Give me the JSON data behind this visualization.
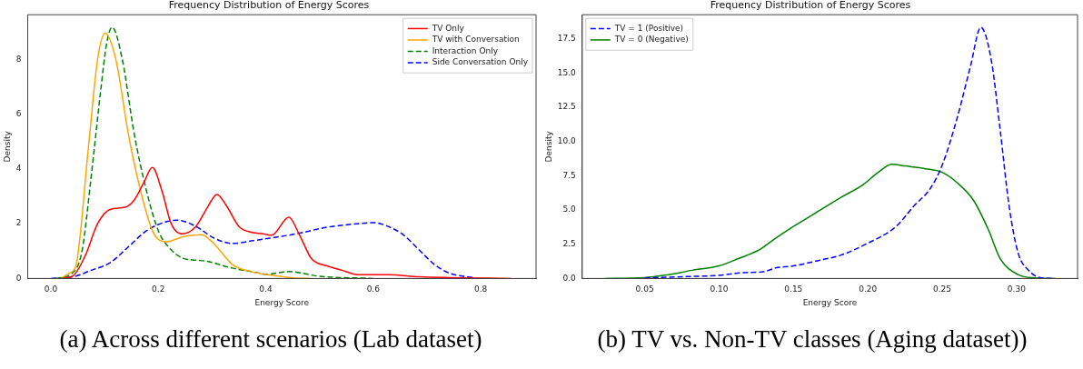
{
  "chart_data": [
    {
      "type": "line",
      "title": "Frequency Distribution of Energy Scores",
      "xlabel": "Energy Score",
      "ylabel": "Density",
      "annotations": [
        "(a) Across different scenarios (Lab dataset)"
      ],
      "xlim": [
        -0.043,
        0.903
      ],
      "ylim": [
        0,
        9.63
      ],
      "xticks": [
        {
          "value": 0,
          "label": "0.0"
        },
        0.2,
        0.4,
        0.6,
        0.8
      ],
      "yticks": [
        0,
        2,
        4,
        6,
        8
      ],
      "legend": "top right",
      "grid": false,
      "marker": "none",
      "series": [
        {
          "name": "TV Only",
          "color": "#ff0000",
          "line_style": "solid",
          "x": [
            0.02,
            0.041,
            0.064,
            0.087,
            0.11,
            0.138,
            0.155,
            0.173,
            0.189,
            0.207,
            0.224,
            0.244,
            0.27,
            0.293,
            0.309,
            0.327,
            0.35,
            0.373,
            0.395,
            0.411,
            0.443,
            0.463,
            0.485,
            0.514,
            0.542,
            0.571,
            0.628,
            0.685,
            0.742,
            0.856
          ],
          "values": [
            0,
            0.09,
            0.83,
            2.0,
            2.52,
            2.6,
            2.86,
            3.5,
            4.05,
            3.18,
            2.0,
            1.63,
            1.9,
            2.65,
            3.07,
            2.65,
            1.9,
            1.69,
            1.63,
            1.58,
            2.24,
            1.58,
            0.73,
            0.46,
            0.3,
            0.14,
            0.14,
            0.06,
            0.03,
            0
          ]
        },
        {
          "name": "TV with Conversation",
          "color": "#ffa500",
          "line_style": "solid",
          "x": [
            0.02,
            0.035,
            0.047,
            0.07,
            0.087,
            0.101,
            0.121,
            0.144,
            0.167,
            0.19,
            0.215,
            0.247,
            0.281,
            0.304,
            0.338,
            0.373,
            0.418,
            0.45,
            0.485
          ],
          "values": [
            0.02,
            0.2,
            0.5,
            4.8,
            8.0,
            8.96,
            8.0,
            5.3,
            3.2,
            1.7,
            1.34,
            1.53,
            1.6,
            1.26,
            0.51,
            0.25,
            0.1,
            0.02,
            0
          ]
        },
        {
          "name": "Interaction Only",
          "color": "#008000",
          "line_style": "dashed",
          "x": [
            0.01,
            0.04,
            0.058,
            0.075,
            0.093,
            0.104,
            0.114,
            0.133,
            0.155,
            0.178,
            0.201,
            0.224,
            0.247,
            0.27,
            0.293,
            0.333,
            0.39,
            0.4,
            0.443,
            0.5,
            0.6
          ],
          "values": [
            0,
            0.2,
            1.0,
            3.7,
            6.9,
            8.6,
            9.17,
            8.0,
            5.3,
            3.2,
            1.7,
            1.05,
            0.73,
            0.67,
            0.62,
            0.4,
            0.19,
            0.15,
            0.25,
            0.08,
            0
          ]
        },
        {
          "name": "Side Conversation Only",
          "color": "#0000ff",
          "line_style": "dashed",
          "x": [
            0,
            0.047,
            0.075,
            0.11,
            0.144,
            0.178,
            0.213,
            0.235,
            0.27,
            0.304,
            0.338,
            0.373,
            0.413,
            0.457,
            0.514,
            0.571,
            0.6,
            0.628,
            0.657,
            0.685,
            0.714,
            0.742,
            0.788
          ],
          "values": [
            0,
            0.09,
            0.3,
            0.57,
            1.15,
            1.74,
            2.06,
            2.13,
            1.9,
            1.47,
            1.28,
            1.37,
            1.49,
            1.63,
            1.87,
            2.0,
            2.04,
            1.9,
            1.58,
            1.05,
            0.51,
            0.19,
            0.03
          ]
        }
      ]
    },
    {
      "type": "line",
      "title": "Frequency Distribution of Energy Scores",
      "xlabel": "Energy Score",
      "ylabel": "Density",
      "annotations": [
        "(b) TV vs. Non-TV classes (Aging dataset))"
      ],
      "xlim": [
        0.008,
        0.341
      ],
      "ylim": [
        0,
        19.27
      ],
      "xticks": [
        0.05,
        {
          "value": 0.1,
          "label": "0.10"
        },
        0.15,
        {
          "value": 0.2,
          "label": "0.20"
        },
        0.25,
        {
          "value": 0.3,
          "label": "0.30"
        }
      ],
      "yticks": [
        {
          "value": 0,
          "label": "0.0"
        },
        2.5,
        {
          "value": 5,
          "label": "5.0"
        },
        7.5,
        {
          "value": 10,
          "label": "10.0"
        },
        12.5,
        {
          "value": 15,
          "label": "15.0"
        },
        17.5
      ],
      "legend": "top left",
      "grid": false,
      "marker": "none",
      "series": [
        {
          "name": "TV = 1 (Positive)",
          "color": "#0000ff",
          "line_style": "dashed",
          "x": [
            0.05,
            0.076,
            0.1,
            0.117,
            0.13,
            0.138,
            0.15,
            0.168,
            0.182,
            0.199,
            0.219,
            0.231,
            0.242,
            0.25,
            0.26,
            0.269,
            0.276,
            0.283,
            0.289,
            0.295,
            0.301,
            0.308,
            0.316,
            0.324
          ],
          "values": [
            0.04,
            0.13,
            0.23,
            0.43,
            0.49,
            0.77,
            0.92,
            1.34,
            1.71,
            2.52,
            3.8,
            5.3,
            6.57,
            8.28,
            11.7,
            15.5,
            18.35,
            15.96,
            10.84,
            5.29,
            1.88,
            0.6,
            0.06,
            0
          ]
        },
        {
          "name": "TV = 0 (Negative)",
          "color": "#008000",
          "line_style": "solid",
          "x": [
            0.023,
            0.05,
            0.066,
            0.082,
            0.1,
            0.113,
            0.127,
            0.138,
            0.15,
            0.168,
            0.182,
            0.196,
            0.207,
            0.216,
            0.225,
            0.24,
            0.25,
            0.26,
            0.271,
            0.281,
            0.289,
            0.301,
            0.312,
            0.326
          ],
          "values": [
            0,
            0.06,
            0.28,
            0.6,
            0.92,
            1.45,
            2.09,
            2.94,
            3.8,
            5.0,
            5.93,
            6.79,
            7.75,
            8.34,
            8.22,
            8.0,
            7.75,
            7.0,
            5.72,
            3.58,
            1.45,
            0.28,
            0.04,
            0
          ]
        }
      ]
    }
  ]
}
